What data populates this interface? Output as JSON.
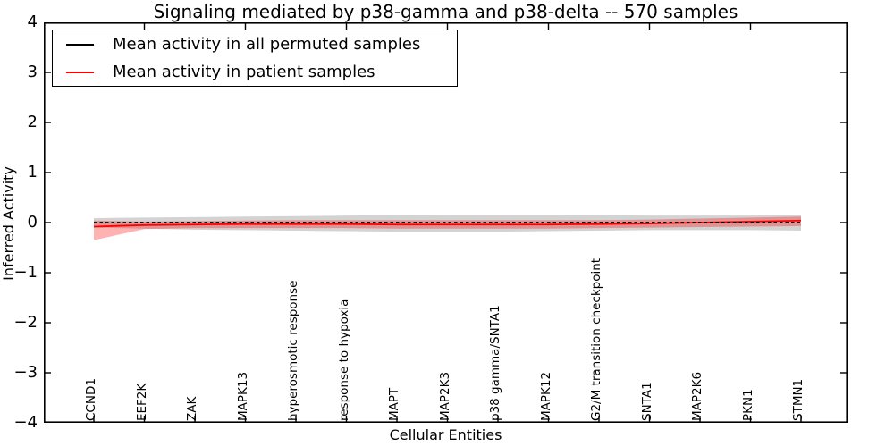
{
  "figure": {
    "title": "Signaling mediated by p38-gamma and p38-delta -- 570 samples",
    "xlabel": "Cellular Entities",
    "ylabel": "Inferred Activity",
    "background_color": "#ffffff",
    "frame_color": "#000000"
  },
  "legend": {
    "entries": [
      {
        "label": "Mean activity in all permuted samples",
        "color": "#000000"
      },
      {
        "label": "Mean activity in patient samples",
        "color": "#ff0000"
      }
    ]
  },
  "chart_data": {
    "type": "line",
    "title": "Signaling mediated by p38-gamma and p38-delta -- 570 samples",
    "xlabel": "Cellular Entities",
    "ylabel": "Inferred Activity",
    "ylim": [
      -4,
      4
    ],
    "yticks": [
      4,
      3,
      2,
      1,
      0,
      -1,
      -2,
      -3,
      -4
    ],
    "ytick_labels": [
      "4",
      "3",
      "2",
      "1",
      "0",
      "−1",
      "−2",
      "−3",
      "−4"
    ],
    "grid": false,
    "legend_position": "upper left",
    "categories": [
      "CCND1",
      "EEF2K",
      "ZAK",
      "MAPK13",
      "hyperosmotic response",
      "response to hypoxia",
      "MAPT",
      "MAP2K3",
      "p38 gamma/SNTA1",
      "MAPK12",
      "G2/M transition checkpoint",
      "SNTA1",
      "MAP2K6",
      "PKN1",
      "STMN1"
    ],
    "series": [
      {
        "name": "Mean activity in all permuted samples",
        "color": "#000000",
        "line_style": "dashed",
        "values": [
          0,
          0,
          0,
          0,
          0,
          0,
          0,
          0,
          0,
          0,
          0,
          0,
          0,
          0,
          0
        ]
      },
      {
        "name": "Mean activity in patient samples",
        "color": "#ff0000",
        "line_style": "solid",
        "values": [
          -0.08,
          -0.05,
          -0.04,
          -0.03,
          -0.03,
          -0.03,
          -0.04,
          -0.04,
          -0.04,
          -0.04,
          -0.03,
          -0.02,
          0.0,
          0.02,
          0.04
        ]
      }
    ],
    "bands": [
      {
        "name": "permuted-samples-std-band",
        "color": "rgba(128,128,128,0.35)",
        "upper": [
          0.09,
          0.1,
          0.11,
          0.12,
          0.13,
          0.14,
          0.15,
          0.16,
          0.16,
          0.16,
          0.15,
          0.14,
          0.14,
          0.14,
          0.15
        ],
        "lower": [
          -0.1,
          -0.12,
          -0.14,
          -0.15,
          -0.16,
          -0.17,
          -0.18,
          -0.18,
          -0.18,
          -0.17,
          -0.16,
          -0.15,
          -0.15,
          -0.15,
          -0.16
        ]
      },
      {
        "name": "patient-samples-std-band",
        "color": "rgba(255,0,0,0.30)",
        "upper": [
          0.04,
          0.02,
          0.03,
          0.04,
          0.05,
          0.05,
          0.05,
          0.05,
          0.05,
          0.05,
          0.05,
          0.06,
          0.08,
          0.1,
          0.12
        ],
        "lower": [
          -0.35,
          -0.13,
          -0.11,
          -0.11,
          -0.11,
          -0.11,
          -0.12,
          -0.12,
          -0.12,
          -0.12,
          -0.11,
          -0.1,
          -0.09,
          -0.08,
          -0.07
        ]
      }
    ]
  }
}
